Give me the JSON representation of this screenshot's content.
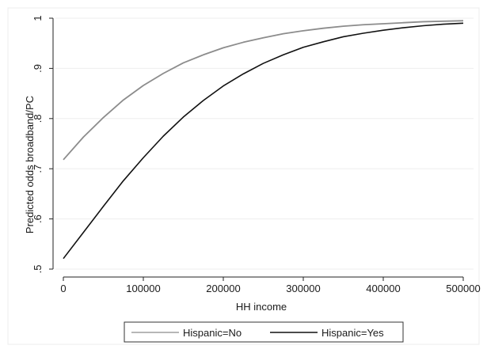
{
  "chart_data": {
    "type": "line",
    "xlabel": "HH income",
    "ylabel": "Predicted odds broadband/PC",
    "xlim": [
      0,
      500000
    ],
    "ylim": [
      0.5,
      1.0
    ],
    "xticks": [
      0,
      100000,
      200000,
      300000,
      400000,
      500000
    ],
    "xtick_labels": [
      "0",
      "100000",
      "200000",
      "300000",
      "400000",
      "500000"
    ],
    "yticks": [
      0.5,
      0.6,
      0.7,
      0.8,
      0.9,
      1.0
    ],
    "ytick_labels": [
      ".5",
      ".6",
      ".7",
      ".8",
      ".9",
      "1"
    ],
    "grid": true,
    "legend_position": "bottom",
    "series": [
      {
        "name": "Hispanic=No",
        "color": "#8c8c8c",
        "x": [
          0,
          25000,
          50000,
          75000,
          100000,
          125000,
          150000,
          175000,
          200000,
          225000,
          250000,
          275000,
          300000,
          325000,
          350000,
          375000,
          400000,
          425000,
          450000,
          475000,
          500000
        ],
        "y": [
          0.718,
          0.763,
          0.802,
          0.837,
          0.866,
          0.89,
          0.911,
          0.927,
          0.941,
          0.952,
          0.961,
          0.969,
          0.975,
          0.98,
          0.984,
          0.987,
          0.989,
          0.991,
          0.993,
          0.994,
          0.995
        ]
      },
      {
        "name": "Hispanic=Yes",
        "color": "#111111",
        "x": [
          0,
          25000,
          50000,
          75000,
          100000,
          125000,
          150000,
          175000,
          200000,
          225000,
          250000,
          275000,
          300000,
          325000,
          350000,
          375000,
          400000,
          425000,
          450000,
          475000,
          500000
        ],
        "y": [
          0.521,
          0.573,
          0.625,
          0.676,
          0.722,
          0.765,
          0.803,
          0.836,
          0.865,
          0.889,
          0.91,
          0.927,
          0.942,
          0.953,
          0.963,
          0.97,
          0.976,
          0.981,
          0.985,
          0.988,
          0.99
        ]
      }
    ]
  }
}
